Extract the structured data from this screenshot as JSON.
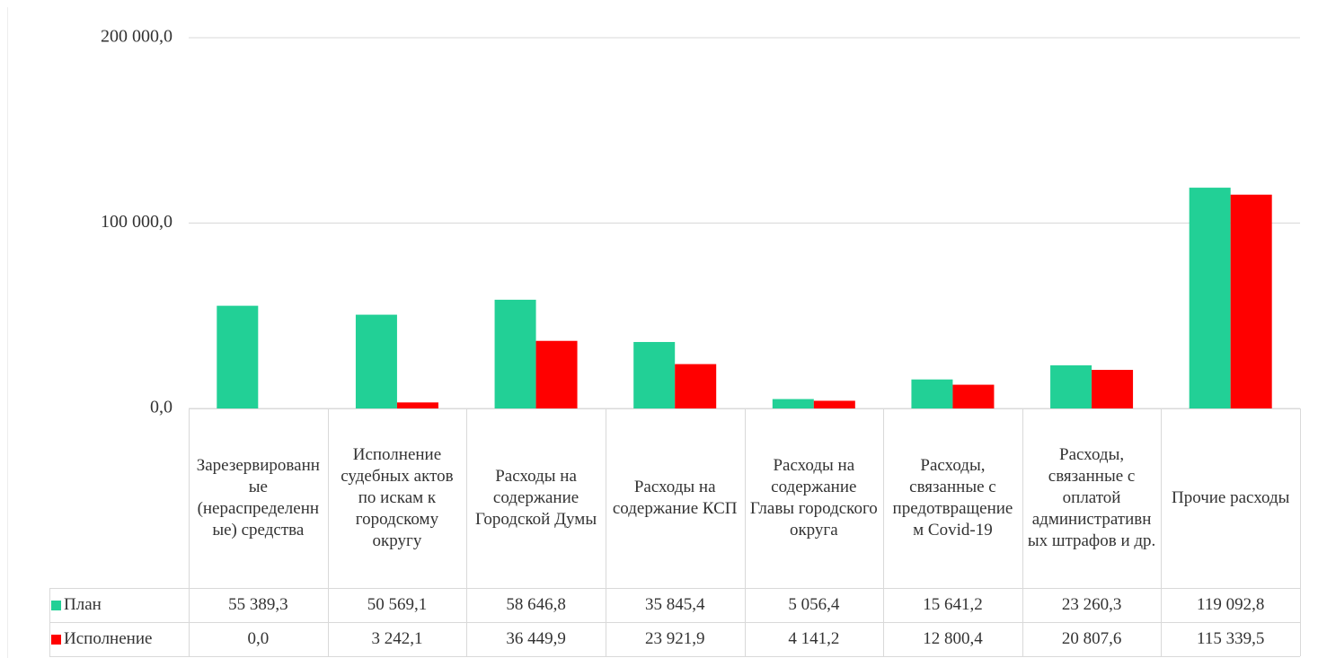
{
  "chart_data": {
    "type": "bar",
    "categories": [
      "Зарезервированные (нераспределенные) средства",
      "Исполнение судебных актов по искам к городскому округу",
      "Расходы на содержание Городской Думы",
      "Расходы на содержание КСП",
      "Расходы на содержание Главы городского округа",
      "Расходы, связанные с предотвращением Covid-19",
      "Расходы, связанные с оплатой административных штрафов и др.",
      "Прочие расходы"
    ],
    "series": [
      {
        "name": "План",
        "color": "#22d096",
        "values": [
          55389.3,
          50569.1,
          58646.8,
          35845.4,
          5056.4,
          15641.2,
          23260.3,
          119092.8
        ],
        "value_labels": [
          "55 389,3",
          "50 569,1",
          "58 646,8",
          "35 845,4",
          "5 056,4",
          "15 641,2",
          "23 260,3",
          "119 092,8"
        ]
      },
      {
        "name": "Исполнение",
        "color": "#ff0000",
        "values": [
          0.0,
          3242.1,
          36449.9,
          23921.9,
          4141.2,
          12800.4,
          20807.6,
          115339.5
        ],
        "value_labels": [
          "0,0",
          "3 242,1",
          "36 449,9",
          "23 921,9",
          "4 141,2",
          "12 800,4",
          "20 807,6",
          "115 339,5"
        ]
      }
    ],
    "ylim": [
      0,
      200000
    ],
    "yticks": [
      {
        "value": 0,
        "label": "0,0"
      },
      {
        "value": 100000,
        "label": "100 000,0"
      },
      {
        "value": 200000,
        "label": "200 000,0"
      }
    ],
    "grid": true,
    "data_table": true
  }
}
